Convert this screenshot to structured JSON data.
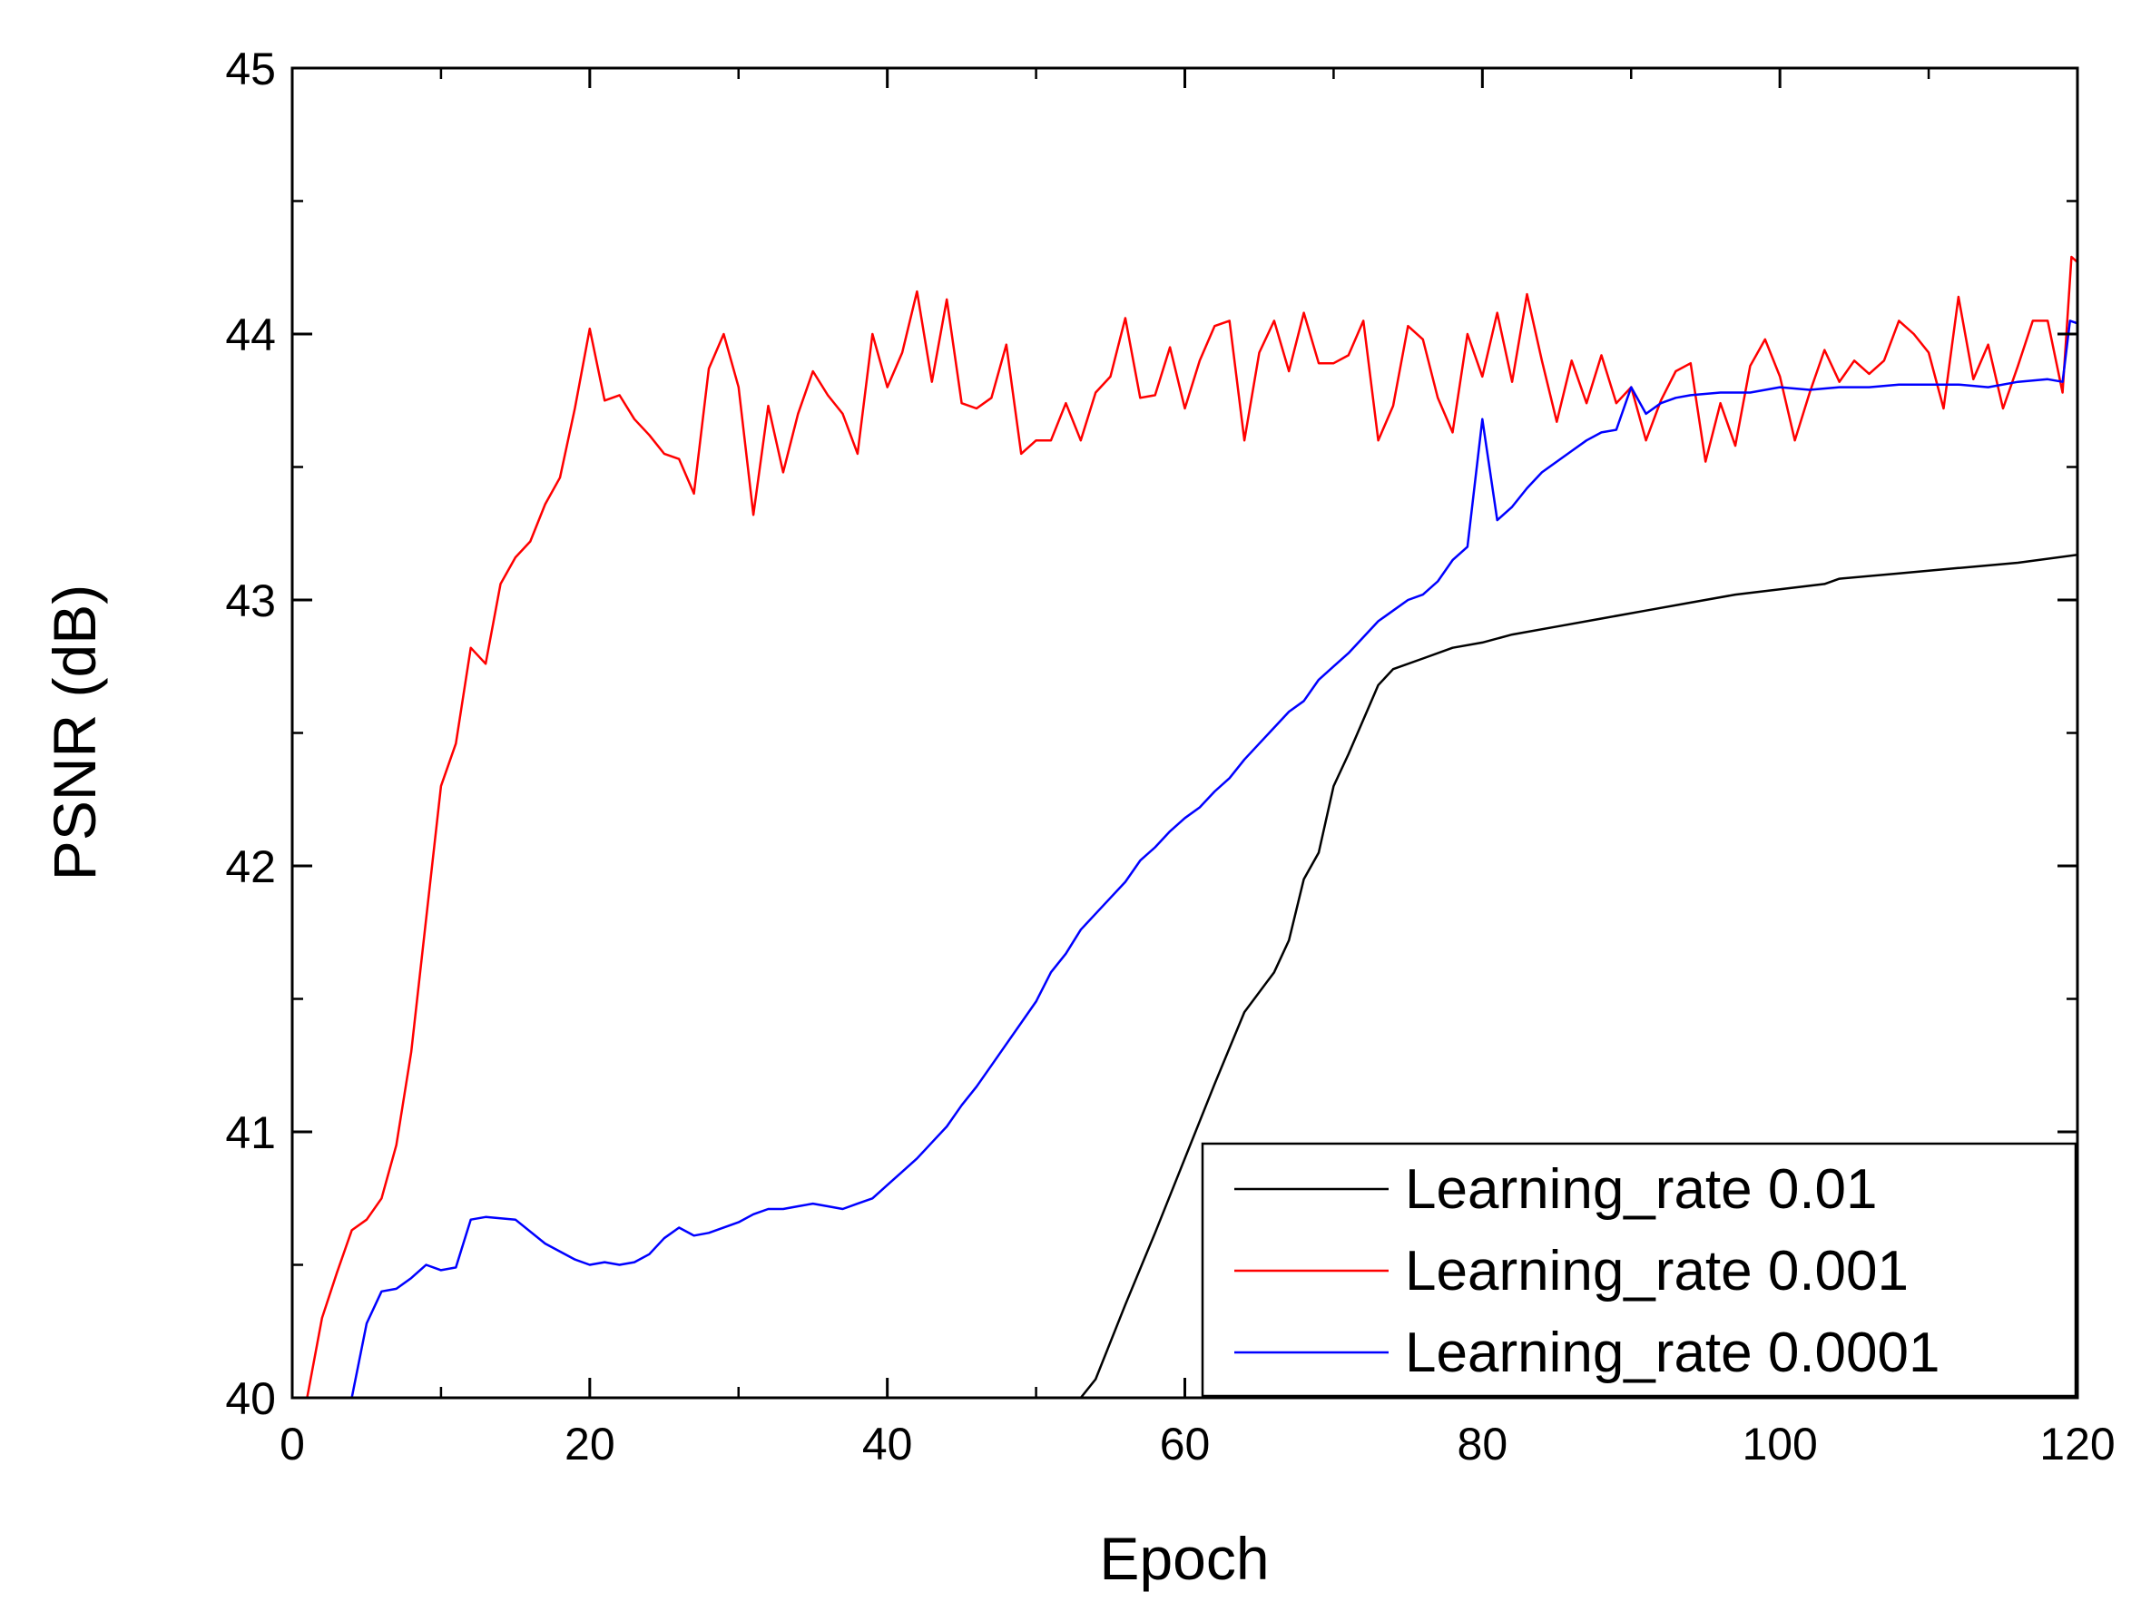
{
  "chart_data": {
    "type": "line",
    "title": "",
    "xlabel": "Epoch",
    "ylabel": "PSNR (dB)",
    "xlim": [
      0,
      120
    ],
    "ylim": [
      40,
      45
    ],
    "x_ticks": [
      0,
      20,
      40,
      60,
      80,
      100,
      120
    ],
    "x_tick_labels": [
      "0",
      "20",
      "40",
      "60",
      "80",
      "100",
      "120"
    ],
    "y_ticks": [
      40,
      41,
      42,
      43,
      44,
      45
    ],
    "y_tick_labels": [
      "40",
      "41",
      "42",
      "43",
      "44",
      "45"
    ],
    "grid": false,
    "legend_position": "bottom-right",
    "series": [
      {
        "name": "Learning_rate 0.01",
        "color": "#000000",
        "points": [
          [
            53,
            40.0
          ],
          [
            54,
            40.07
          ],
          [
            56,
            40.35
          ],
          [
            58,
            40.62
          ],
          [
            60,
            40.9
          ],
          [
            62,
            41.18
          ],
          [
            64,
            41.45
          ],
          [
            66,
            41.6
          ],
          [
            67,
            41.72
          ],
          [
            68,
            41.95
          ],
          [
            69,
            42.05
          ],
          [
            70,
            42.3
          ],
          [
            71,
            42.42
          ],
          [
            72,
            42.55
          ],
          [
            73,
            42.68
          ],
          [
            74,
            42.74
          ],
          [
            76,
            42.78
          ],
          [
            78,
            42.82
          ],
          [
            80,
            42.84
          ],
          [
            82,
            42.87
          ],
          [
            85,
            42.9
          ],
          [
            88,
            42.93
          ],
          [
            91,
            42.96
          ],
          [
            94,
            42.99
          ],
          [
            97,
            43.02
          ],
          [
            100,
            43.04
          ],
          [
            103,
            43.06
          ],
          [
            104,
            43.08
          ],
          [
            108,
            43.1
          ],
          [
            112,
            43.12
          ],
          [
            116,
            43.14
          ],
          [
            120,
            43.17
          ]
        ]
      },
      {
        "name": "Learning_rate 0.001",
        "color": "#ff0000",
        "points": [
          [
            1,
            40.0
          ],
          [
            2,
            40.3
          ],
          [
            3,
            40.47
          ],
          [
            4,
            40.63
          ],
          [
            5,
            40.67
          ],
          [
            6,
            40.75
          ],
          [
            7,
            40.95
          ],
          [
            8,
            41.3
          ],
          [
            9,
            41.8
          ],
          [
            10,
            42.3
          ],
          [
            11,
            42.46
          ],
          [
            12,
            42.82
          ],
          [
            13,
            42.76
          ],
          [
            14,
            43.06
          ],
          [
            15,
            43.16
          ],
          [
            16,
            43.22
          ],
          [
            17,
            43.36
          ],
          [
            18,
            43.46
          ],
          [
            19,
            43.72
          ],
          [
            20,
            44.02
          ],
          [
            21,
            43.75
          ],
          [
            22,
            43.77
          ],
          [
            23,
            43.68
          ],
          [
            24,
            43.62
          ],
          [
            25,
            43.55
          ],
          [
            26,
            43.53
          ],
          [
            27,
            43.4
          ],
          [
            28,
            43.87
          ],
          [
            29,
            44.0
          ],
          [
            30,
            43.8
          ],
          [
            31,
            43.32
          ],
          [
            32,
            43.73
          ],
          [
            33,
            43.48
          ],
          [
            34,
            43.7
          ],
          [
            35,
            43.86
          ],
          [
            36,
            43.77
          ],
          [
            37,
            43.7
          ],
          [
            38,
            43.55
          ],
          [
            39,
            44.0
          ],
          [
            40,
            43.8
          ],
          [
            41,
            43.93
          ],
          [
            42,
            44.16
          ],
          [
            43,
            43.82
          ],
          [
            44,
            44.13
          ],
          [
            45,
            43.74
          ],
          [
            46,
            43.72
          ],
          [
            47,
            43.76
          ],
          [
            48,
            43.96
          ],
          [
            49,
            43.55
          ],
          [
            50,
            43.6
          ],
          [
            51,
            43.6
          ],
          [
            52,
            43.74
          ],
          [
            53,
            43.6
          ],
          [
            54,
            43.78
          ],
          [
            55,
            43.84
          ],
          [
            56,
            44.06
          ],
          [
            57,
            43.76
          ],
          [
            58,
            43.77
          ],
          [
            59,
            43.95
          ],
          [
            60,
            43.72
          ],
          [
            61,
            43.9
          ],
          [
            62,
            44.03
          ],
          [
            63,
            44.05
          ],
          [
            64,
            43.6
          ],
          [
            65,
            43.93
          ],
          [
            66,
            44.05
          ],
          [
            67,
            43.86
          ],
          [
            68,
            44.08
          ],
          [
            69,
            43.89
          ],
          [
            70,
            43.89
          ],
          [
            71,
            43.92
          ],
          [
            72,
            44.05
          ],
          [
            73,
            43.6
          ],
          [
            74,
            43.73
          ],
          [
            75,
            44.03
          ],
          [
            76,
            43.98
          ],
          [
            77,
            43.76
          ],
          [
            78,
            43.63
          ],
          [
            79,
            44.0
          ],
          [
            80,
            43.84
          ],
          [
            81,
            44.08
          ],
          [
            82,
            43.82
          ],
          [
            83,
            44.15
          ],
          [
            84,
            43.9
          ],
          [
            85,
            43.67
          ],
          [
            86,
            43.9
          ],
          [
            87,
            43.74
          ],
          [
            88,
            43.92
          ],
          [
            89,
            43.74
          ],
          [
            90,
            43.8
          ],
          [
            91,
            43.6
          ],
          [
            92,
            43.75
          ],
          [
            93,
            43.86
          ],
          [
            94,
            43.89
          ],
          [
            95,
            43.52
          ],
          [
            96,
            43.74
          ],
          [
            97,
            43.58
          ],
          [
            98,
            43.88
          ],
          [
            99,
            43.98
          ],
          [
            100,
            43.84
          ],
          [
            101,
            43.6
          ],
          [
            102,
            43.78
          ],
          [
            103,
            43.94
          ],
          [
            104,
            43.82
          ],
          [
            105,
            43.9
          ],
          [
            106,
            43.85
          ],
          [
            107,
            43.9
          ],
          [
            108,
            44.05
          ],
          [
            109,
            44.0
          ],
          [
            110,
            43.93
          ],
          [
            111,
            43.72
          ],
          [
            112,
            44.14
          ],
          [
            113,
            43.83
          ],
          [
            114,
            43.96
          ],
          [
            115,
            43.72
          ],
          [
            116,
            43.88
          ],
          [
            117,
            44.05
          ],
          [
            118,
            44.05
          ],
          [
            119,
            43.78
          ],
          [
            119.6,
            44.29
          ],
          [
            120,
            44.27
          ]
        ]
      },
      {
        "name": "Learning_rate 0.0001",
        "color": "#0000ff",
        "points": [
          [
            4,
            40.0
          ],
          [
            5,
            40.28
          ],
          [
            6,
            40.4
          ],
          [
            7,
            40.41
          ],
          [
            8,
            40.45
          ],
          [
            9,
            40.5
          ],
          [
            10,
            40.48
          ],
          [
            11,
            40.49
          ],
          [
            12,
            40.67
          ],
          [
            13,
            40.68
          ],
          [
            15,
            40.67
          ],
          [
            17,
            40.58
          ],
          [
            19,
            40.52
          ],
          [
            20,
            40.5
          ],
          [
            21,
            40.51
          ],
          [
            22,
            40.5
          ],
          [
            23,
            40.51
          ],
          [
            24,
            40.54
          ],
          [
            25,
            40.6
          ],
          [
            26,
            40.64
          ],
          [
            27,
            40.61
          ],
          [
            28,
            40.62
          ],
          [
            30,
            40.66
          ],
          [
            31,
            40.69
          ],
          [
            32,
            40.71
          ],
          [
            33,
            40.71
          ],
          [
            34,
            40.72
          ],
          [
            35,
            40.73
          ],
          [
            36,
            40.72
          ],
          [
            37,
            40.71
          ],
          [
            38,
            40.73
          ],
          [
            39,
            40.75
          ],
          [
            40,
            40.8
          ],
          [
            41,
            40.85
          ],
          [
            42,
            40.9
          ],
          [
            43,
            40.96
          ],
          [
            44,
            41.02
          ],
          [
            45,
            41.1
          ],
          [
            46,
            41.17
          ],
          [
            47,
            41.25
          ],
          [
            48,
            41.33
          ],
          [
            49,
            41.41
          ],
          [
            50,
            41.49
          ],
          [
            51,
            41.6
          ],
          [
            52,
            41.67
          ],
          [
            53,
            41.76
          ],
          [
            54,
            41.82
          ],
          [
            55,
            41.88
          ],
          [
            56,
            41.94
          ],
          [
            57,
            42.02
          ],
          [
            58,
            42.07
          ],
          [
            59,
            42.13
          ],
          [
            60,
            42.18
          ],
          [
            61,
            42.22
          ],
          [
            62,
            42.28
          ],
          [
            63,
            42.33
          ],
          [
            64,
            42.4
          ],
          [
            65,
            42.46
          ],
          [
            66,
            42.52
          ],
          [
            67,
            42.58
          ],
          [
            68,
            42.62
          ],
          [
            69,
            42.7
          ],
          [
            70,
            42.75
          ],
          [
            71,
            42.8
          ],
          [
            72,
            42.86
          ],
          [
            73,
            42.92
          ],
          [
            74,
            42.96
          ],
          [
            75,
            43.0
          ],
          [
            76,
            43.02
          ],
          [
            77,
            43.07
          ],
          [
            78,
            43.15
          ],
          [
            79,
            43.2
          ],
          [
            80,
            43.68
          ],
          [
            81,
            43.3
          ],
          [
            82,
            43.35
          ],
          [
            83,
            43.42
          ],
          [
            84,
            43.48
          ],
          [
            85,
            43.52
          ],
          [
            86,
            43.56
          ],
          [
            87,
            43.6
          ],
          [
            88,
            43.63
          ],
          [
            89,
            43.64
          ],
          [
            90,
            43.8
          ],
          [
            91,
            43.7
          ],
          [
            92,
            43.74
          ],
          [
            93,
            43.76
          ],
          [
            94,
            43.77
          ],
          [
            96,
            43.78
          ],
          [
            98,
            43.78
          ],
          [
            100,
            43.8
          ],
          [
            102,
            43.79
          ],
          [
            104,
            43.8
          ],
          [
            106,
            43.8
          ],
          [
            108,
            43.81
          ],
          [
            110,
            43.81
          ],
          [
            112,
            43.81
          ],
          [
            114,
            43.8
          ],
          [
            116,
            43.82
          ],
          [
            118,
            43.83
          ],
          [
            119,
            43.82
          ],
          [
            119.5,
            44.05
          ],
          [
            120,
            44.04
          ]
        ]
      }
    ]
  }
}
